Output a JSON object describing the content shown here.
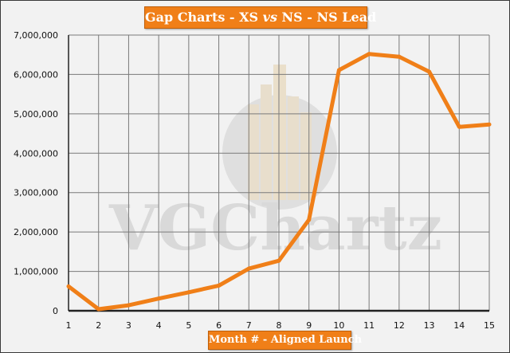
{
  "chart_data": {
    "type": "line",
    "title_parts": [
      "Gap Charts - XS ",
      "vs",
      " NS - NS Lead"
    ],
    "xlabel": "Month # - Aligned Launch",
    "ylabel": "",
    "x": [
      1,
      2,
      3,
      4,
      5,
      6,
      7,
      8,
      9,
      10,
      11,
      12,
      13,
      14,
      15
    ],
    "series": [
      {
        "values": [
          620000,
          40000,
          140000,
          310000,
          470000,
          640000,
          1070000,
          1270000,
          2310000,
          6110000,
          6520000,
          6450000,
          6070000,
          4670000,
          4730000
        ],
        "color": "#f07f18"
      }
    ],
    "y_ticks": [
      0,
      1000000,
      2000000,
      3000000,
      4000000,
      5000000,
      6000000,
      7000000
    ],
    "y_tick_labels": [
      "0",
      "1,000,000",
      "2,000,000",
      "3,000,000",
      "4,000,000",
      "5,000,000",
      "6,000,000",
      "7,000,000"
    ],
    "ylim": [
      0,
      7000000
    ],
    "xlim": [
      1,
      15
    ],
    "grid": true,
    "legend": "none",
    "watermark": "VGChartz",
    "colors": {
      "line": "#f07f18",
      "banner": "#f07f18",
      "plot_bg": "#f2f2f2",
      "grid": "#7a7a7a"
    }
  }
}
